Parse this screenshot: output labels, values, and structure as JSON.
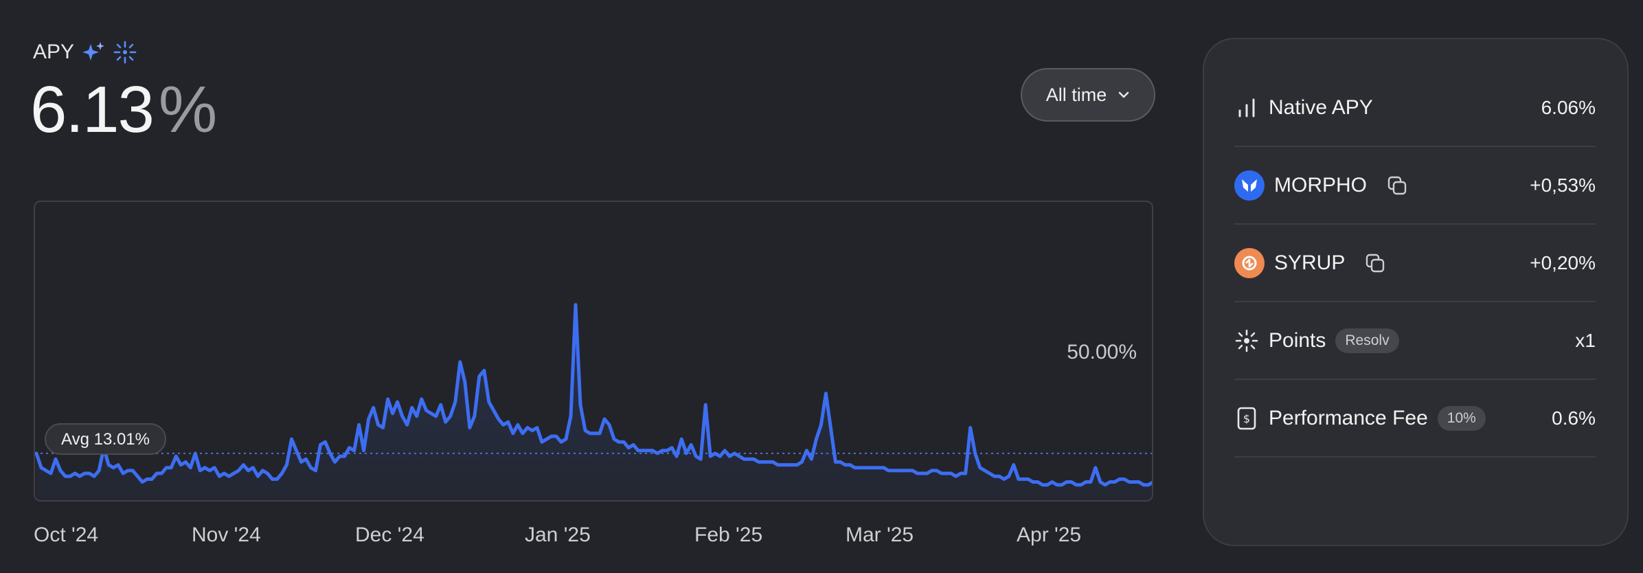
{
  "header": {
    "apy_label": "APY",
    "apy_value": "6.13",
    "apy_unit": "%"
  },
  "range_select": {
    "selected": "All time"
  },
  "chart": {
    "y_tick_label": "50.00%",
    "avg_label": "Avg 13.01%",
    "x_labels": [
      "Oct '24",
      "Nov '24",
      "Dec '24",
      "Jan '25",
      "Feb '25",
      "Mar '25",
      "Apr '25"
    ]
  },
  "chart_data": {
    "type": "line",
    "title": "",
    "xlabel": "",
    "ylabel": "",
    "x_tick_labels": [
      "Oct '24",
      "Nov '24",
      "Dec '24",
      "Jan '25",
      "Feb '25",
      "Mar '25",
      "Apr '25"
    ],
    "y_reference": {
      "label": "50.00%",
      "value": 50
    },
    "average": {
      "label": "Avg 13.01%",
      "value": 13.01
    },
    "ylim": [
      0,
      100
    ],
    "series": [
      {
        "values": [
          13,
          8,
          7,
          6,
          11,
          7,
          5,
          5,
          6,
          5,
          6,
          6,
          5,
          7,
          15,
          9,
          8,
          9,
          6,
          7,
          7,
          5,
          3,
          4,
          4,
          6,
          6,
          8,
          8,
          12,
          9,
          10,
          8,
          13,
          7,
          8,
          7,
          8,
          5,
          6,
          5,
          6,
          7,
          9,
          7,
          8,
          5,
          7,
          6,
          4,
          4,
          6,
          9,
          18,
          14,
          10,
          11,
          8,
          7,
          16,
          17,
          13,
          10,
          12,
          12,
          15,
          14,
          23,
          14,
          25,
          29,
          23,
          22,
          32,
          27,
          31,
          26,
          23,
          29,
          26,
          32,
          28,
          27,
          26,
          30,
          24,
          26,
          31,
          45,
          38,
          22,
          26,
          40,
          42,
          31,
          28,
          25,
          23,
          24,
          20,
          23,
          20,
          22,
          21,
          22,
          17,
          18,
          19,
          19,
          17,
          18,
          26,
          65,
          30,
          21,
          20,
          20,
          20,
          25,
          23,
          18,
          17,
          17,
          15,
          16,
          14,
          14,
          14,
          14,
          13,
          14,
          14,
          15,
          12,
          18,
          13,
          16,
          12,
          11,
          30,
          12,
          13,
          12,
          14,
          12,
          13,
          12,
          11,
          11,
          11,
          10,
          10,
          10,
          10,
          9,
          9,
          9,
          9,
          9,
          10,
          14,
          11,
          18,
          23,
          34,
          22,
          10,
          10,
          9,
          9,
          8,
          8,
          8,
          8,
          8,
          8,
          8,
          7,
          7,
          7,
          7,
          7,
          7,
          6,
          6,
          6,
          7,
          7,
          6,
          6,
          6,
          5,
          6,
          6,
          22,
          13,
          8,
          7,
          6,
          5,
          5,
          4,
          5,
          9,
          4,
          4,
          4,
          3,
          3,
          2,
          2,
          3,
          2,
          2,
          3,
          3,
          2,
          2,
          3,
          3,
          8,
          3,
          2,
          3,
          3,
          4,
          4,
          3,
          3,
          3,
          2,
          2,
          3
        ]
      }
    ]
  },
  "breakdown": {
    "rows": [
      {
        "name": "Native APY",
        "tag": "",
        "value": "6.06%",
        "icon": "bar-chart-icon"
      },
      {
        "name": "MORPHO",
        "tag": "",
        "value": "+0,53%",
        "icon": "morpho-token-icon"
      },
      {
        "name": "SYRUP",
        "tag": "",
        "value": "+0,20%",
        "icon": "syrup-token-icon"
      },
      {
        "name": "Points",
        "tag": "Resolv",
        "value": "x1",
        "icon": "sparkle-icon"
      },
      {
        "name": "Performance Fee",
        "tag": "10%",
        "value": "0.6%",
        "icon": "fee-receipt-icon"
      }
    ]
  },
  "colors": {
    "accent": "#3d6ef2",
    "background": "#232429",
    "panel": "#2c2d32",
    "morpho": "#2f6bf0",
    "syrup": "#ee8a52"
  }
}
